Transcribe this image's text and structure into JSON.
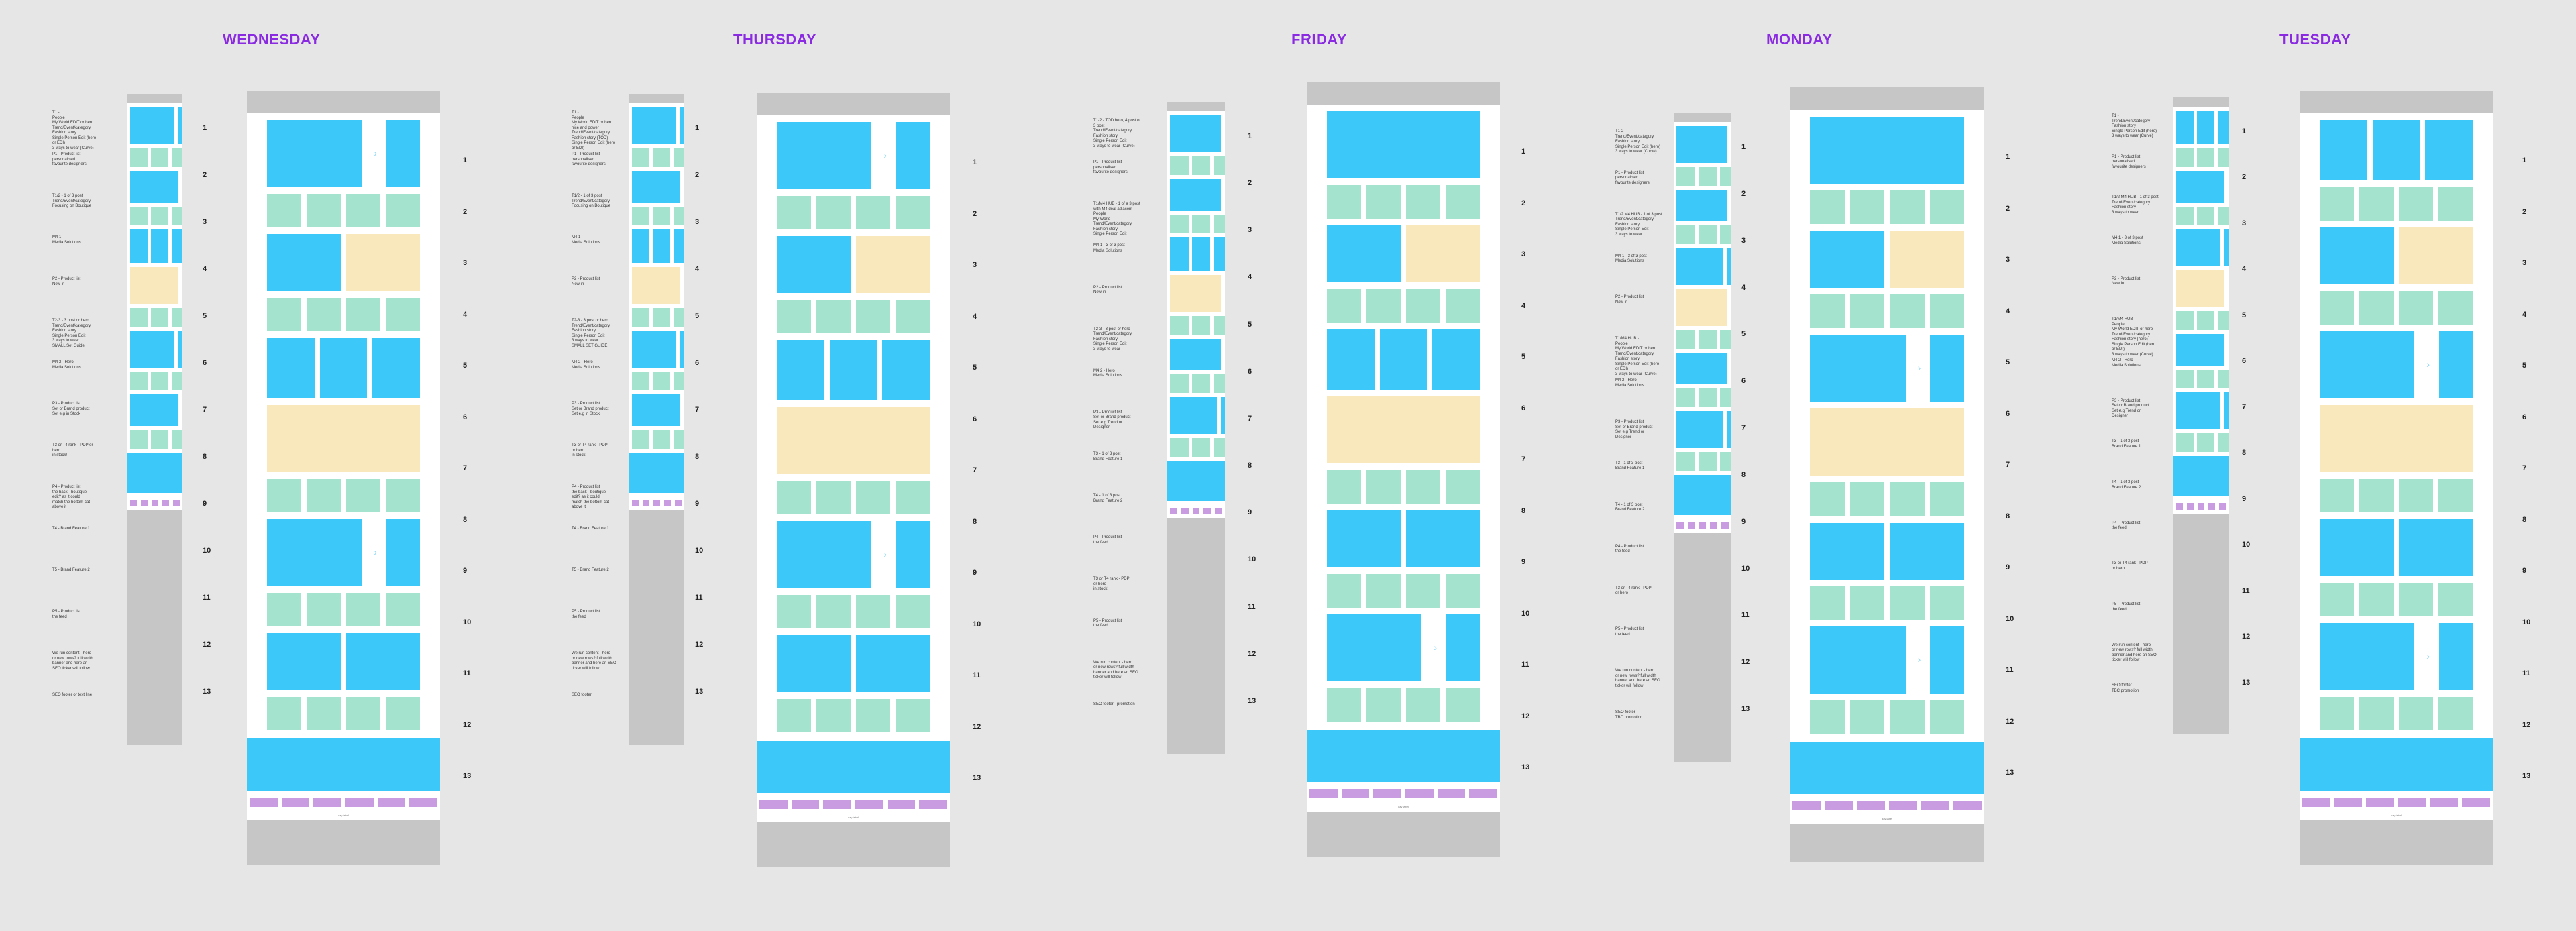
{
  "days": [
    "WEDNESDAY",
    "THURSDAY",
    "FRIDAY",
    "MONDAY",
    "TUESDAY"
  ],
  "row_numbers": [
    "1",
    "2",
    "3",
    "4",
    "5",
    "6",
    "7",
    "8",
    "9",
    "10",
    "11",
    "12",
    "13"
  ],
  "footer_text": "day label",
  "notes": {
    "wednesday": [
      "T1 -\nPeople\nMy World EDIT or hero\nTrend/Event/category\nFashion story\nSingle Person Edit (hero\nor EDI)\n3 ways to wear (Curve)",
      "P1 - Product list\npersonalised\nfavourite designers",
      "T1/2 - 1 of 3 post\nTrend/Event/category\nFocusing on Boutique",
      "M4 1 -\nMedia Solutions",
      "P2 - Product list\nNew in",
      "T2-3 - 3 post or hero\nTrend/Event/category\nFashion story\nSingle Person Edit\n3 ways to wear\nSMALL Set Guide",
      "M4 2 - Hero\nMedia Solutions",
      "P3 - Product list\nSet or Brand product\nSet e.g in Stock",
      "T3 or T4 rank - PDP or\nhero\nin stock!",
      "P4 - Product list\nthe back - boutique\nedit? as it could\nmatch the bottom cat\nabove it",
      "T4 - Brand Feature 1",
      "T5 - Brand Feature 2",
      "P5 - Product list\nthe feed",
      "We run content - hero\nor new rows? full width\nbanner and here an\nSEO ticker will follow",
      "SEO footer or text line"
    ],
    "thursday": [
      "T1 -\nPeople\nMy World EDIT or hero\nnice and power\nTrend/Event/category\nFashion story (TOD)\nSingle Person Edit (hero\nor EDI)",
      "P1 - Product list\npersonalised\nfavourite designers",
      "T1/2 - 1 of 3 post\nTrend/Event/category\nFocusing on Boutique",
      "M4 1 -\nMedia Solutions",
      "P2 - Product list\nNew in",
      "T2-3 - 3 post or hero\nTrend/Event/category\nFashion story\nSingle Person Edit\n3 ways to wear\nSMALL SET GUIDE",
      "M4 2 - Hero\nMedia Solutions",
      "P3 - Product list\nSet or Brand product\nSet e.g in Stock",
      "T3 or T4 rank - PDP\nor hero\nin stock!",
      "P4 - Product list\nthe back - boutique\nedit? as it could\nmatch the bottom cat\nabove it",
      "T4 - Brand Feature 1",
      "T5 - Brand Feature 2",
      "P5 - Product list\nthe feed",
      "We run content - hero\nor new rows? full width\nbanner and here an SEO\nticker will follow",
      "SEO footer"
    ],
    "friday": [
      "T1-2 - TOD hero, 4 post or\n3 post\nTrend/Event/category\nFashion story\nSingle Person Edit\n3 ways to wear (Curve)",
      "P1 - Product list\npersonalised\nfavourite designers",
      "T1/M4 HUB - 1 of a 3 post\nwith M4 deal adjacent\nPeople\nMy World\nTrend/Event/category\nFashion story\nSingle Person Edit",
      "M4 1 - 3 of 3 post\nMedia Solutions",
      "P2 - Product list\nNew in",
      "T2-3 - 3 post or hero\nTrend/Event/category\nFashion story\nSingle Person Edit\n3 ways to wear",
      "M4 2 - Hero\nMedia Solutions",
      "P3 - Product list\nSet or Brand product\nSet e.g Trend or\nDesigner",
      "T3 - 1 of 3 post\nBrand Feature 1",
      "T4 - 1 of 3 post\nBrand Feature 2",
      "P4 - Product list\nthe feed",
      "T3 or T4 rank - PDP\nor hero\nin stock!",
      "P5 - Product list\nthe feed",
      "We run content - hero\nor new rows? full width\nbanner and here an SEO\nticker will follow",
      "SEO footer - promotion"
    ],
    "monday": [
      "T1-2 -\nTrend/Event/category\nFashion story\nSingle Person Edit (hero)\n3 ways to wear (Curve)",
      "P1 - Product list\npersonalised\nfavourite designers",
      "T1/2 M4 HUB - 1 of 3 post\nTrend/Event/category\nFashion story\nSingle Person Edit\n3 ways to wear",
      "M4 1 - 3 of 3 post\nMedia Solutions",
      "P2 - Product list\nNew in",
      "T1/M4 HUB -\nPeople\nMy World EDIT or hero\nTrend/Event/category\nFashion story\nSingle Person Edit (hero\nor EDI)\n3 ways to wear (Curve)",
      "M4 2 - Hero\nMedia Solutions",
      "P3 - Product list\nSet or Brand product\nSet e.g Trend or\nDesigner",
      "T3 - 1 of 3 post\nBrand Feature 1",
      "T4 - 1 of 3 post\nBrand Feature 2",
      "P4 - Product list\nthe feed",
      "T3 or T4 rank - PDP\nor hero",
      "P5 - Product list\nthe feed",
      "We run content - hero\nor new rows? full width\nbanner and here an SEO\nticker will follow",
      "SEO footer\nTBC promotion"
    ],
    "tuesday": [
      "T1 -\nTrend/Event/category\nFashion story\nSingle Person Edit (hero)\n3 ways to wear (Curve)",
      "P1 - Product list\npersonalised\nfavourite designers",
      "T1/2 M4 HUB - 1 of 3 post\nTrend/Event/category\nFashion story\n3 ways to wear",
      "M4 1 - 3 of 3 post\nMedia Solutions",
      "P2 - Product list\nNew in",
      "T1/M4 HUB\nPeople\nMy World EDIT or hero\nTrend/Event/category\nFashion story (hero)\nSingle Person Edit (hero\nor EDI)\n3 ways to wear (Curve)",
      "M4 2 - Hero\nMedia Solutions",
      "P3 - Product list\nSet or Brand product\nSet e.g Trend or\nDesigner",
      "T3 - 1 of 3 post\nBrand Feature 1",
      "T4 - 1 of 3 post\nBrand Feature 2",
      "P4 - Product list\nthe feed",
      "T3 or T4 rank - PDP\nor hero",
      "P5 - Product list\nthe feed",
      "We run content - hero\nor new rows? full width\nbanner and here an SEO\nticker will follow",
      "SEO footer\nTBC promotion"
    ]
  }
}
